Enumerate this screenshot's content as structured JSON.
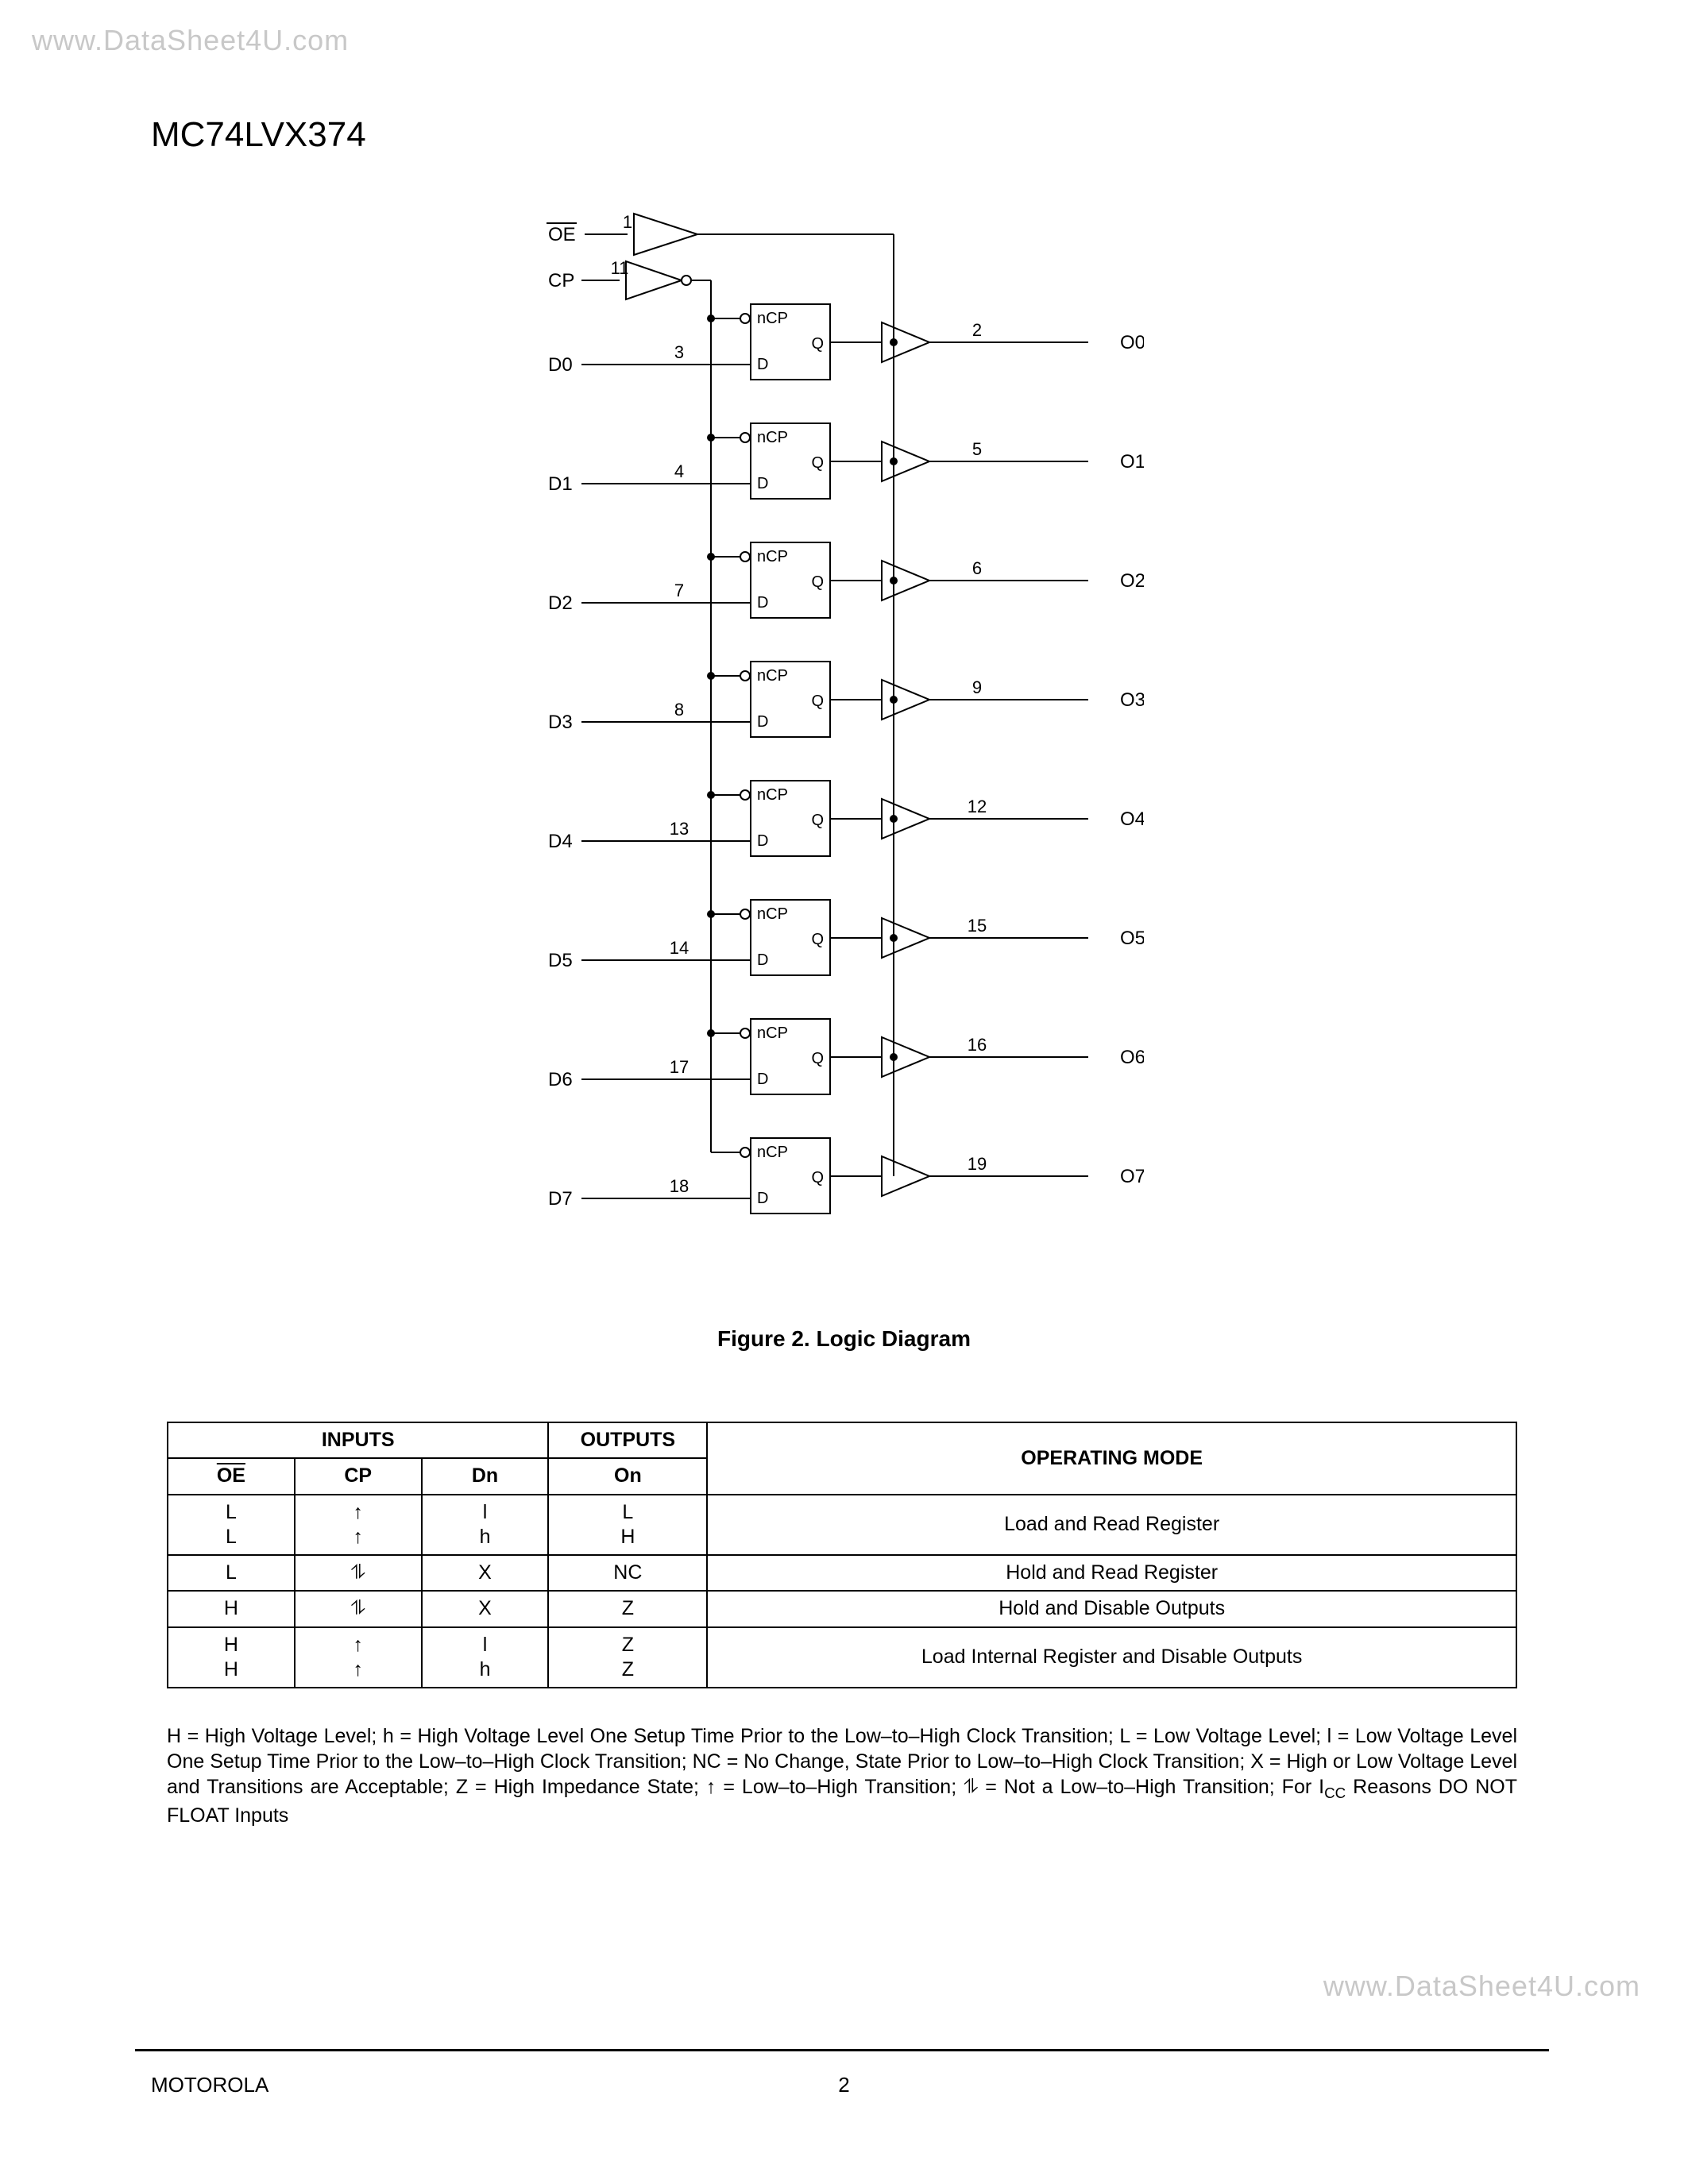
{
  "watermark_top": "www.DataSheet4U.com",
  "watermark_bottom": "www.DataSheet4U.com",
  "part_number": "MC74LVX374",
  "figure_caption": "Figure 2. Logic Diagram",
  "footer_vendor": "MOTOROLA",
  "footer_page": "2",
  "diagram": {
    "oe_label": "OE",
    "oe_pin": "1",
    "cp_label": "CP",
    "cp_pin": "11",
    "ff_ncp": "nCP",
    "ff_d": "D",
    "ff_q": "Q",
    "stroke": "#000000",
    "stroke_width": 2,
    "font_pin": 22,
    "font_label": 24,
    "channels": [
      {
        "d_label": "D0",
        "d_pin": "3",
        "o_label": "O0",
        "o_pin": "2"
      },
      {
        "d_label": "D1",
        "d_pin": "4",
        "o_label": "O1",
        "o_pin": "5"
      },
      {
        "d_label": "D2",
        "d_pin": "7",
        "o_label": "O2",
        "o_pin": "6"
      },
      {
        "d_label": "D3",
        "d_pin": "8",
        "o_label": "O3",
        "o_pin": "9"
      },
      {
        "d_label": "D4",
        "d_pin": "13",
        "o_label": "O4",
        "o_pin": "12"
      },
      {
        "d_label": "D5",
        "d_pin": "14",
        "o_label": "O5",
        "o_pin": "15"
      },
      {
        "d_label": "D6",
        "d_pin": "17",
        "o_label": "O6",
        "o_pin": "16"
      },
      {
        "d_label": "D7",
        "d_pin": "18",
        "o_label": "O7",
        "o_pin": "19"
      }
    ]
  },
  "table": {
    "header_inputs": "INPUTS",
    "header_outputs": "OUTPUTS",
    "header_mode": "OPERATING MODE",
    "col_oe": "OE",
    "col_cp": "CP",
    "col_dn": "Dn",
    "col_on": "On",
    "rows": [
      {
        "oe": "L\nL",
        "cp": "↑\n↑",
        "dn": "l\nh",
        "on": "L\nH",
        "mode": "Load and Read Register"
      },
      {
        "oe": "L",
        "cp": "⥮",
        "dn": "X",
        "on": "NC",
        "mode": "Hold and Read Register"
      },
      {
        "oe": "H",
        "cp": "⥮",
        "dn": "X",
        "on": "Z",
        "mode": "Hold and Disable Outputs"
      },
      {
        "oe": "H\nH",
        "cp": "↑\n↑",
        "dn": "l\nh",
        "on": "Z\nZ",
        "mode": "Load Internal Register and Disable Outputs"
      }
    ],
    "col_widths": [
      "160px",
      "160px",
      "160px",
      "200px",
      "1020px"
    ]
  },
  "legend": {
    "text": "H = High Voltage Level; h = High Voltage Level One Setup Time Prior to the Low–to–High Clock Transition; L = Low Voltage Level; l = Low Voltage Level One Setup Time Prior to the Low–to–High Clock Transition; NC = No Change, State Prior to Low–to–High Clock Transition; X = High or Low Voltage Level and Transitions are Acceptable; Z = High Impedance State; ↑ = Low–to–High Transition; ⥮ = Not a Low–to–High Transition; For I",
    "icc": "CC",
    "text2": " Reasons DO NOT FLOAT Inputs"
  }
}
